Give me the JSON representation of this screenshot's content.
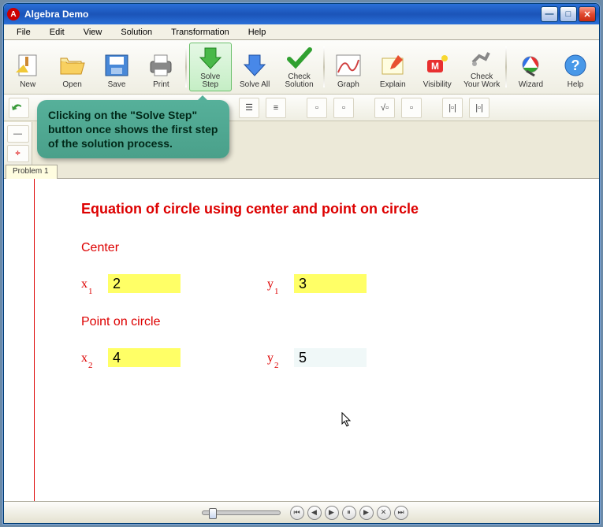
{
  "window": {
    "title": "Algebra Demo"
  },
  "menu": {
    "items": [
      "File",
      "Edit",
      "View",
      "Solution",
      "Transformation",
      "Help"
    ]
  },
  "toolbar": {
    "buttons": [
      {
        "label": "New",
        "name": "new-button"
      },
      {
        "label": "Open",
        "name": "open-button"
      },
      {
        "label": "Save",
        "name": "save-button"
      },
      {
        "label": "Print",
        "name": "print-button"
      },
      {
        "label": "Solve\nStep",
        "name": "solve-step-button",
        "highlight": true
      },
      {
        "label": "Solve All",
        "name": "solve-all-button"
      },
      {
        "label": "Check\nSolution",
        "name": "check-solution-button"
      },
      {
        "label": "Graph",
        "name": "graph-button"
      },
      {
        "label": "Explain",
        "name": "explain-button"
      },
      {
        "label": "Visibility",
        "name": "visibility-button"
      },
      {
        "label": "Check\nYour Work",
        "name": "check-work-button"
      },
      {
        "label": "Wizard",
        "name": "wizard-button"
      },
      {
        "label": "Help",
        "name": "help-button"
      }
    ]
  },
  "tooltip": {
    "text": "Clicking on the \"Solve Step\" button once shows the first step of the solution process."
  },
  "tab": {
    "label": "Problem 1"
  },
  "problem": {
    "title": "Equation of circle using center and point on circle",
    "section1": "Center",
    "x1_label": "x",
    "x1_sub": "1",
    "x1_val": "2",
    "y1_label": "y",
    "y1_sub": "1",
    "y1_val": "3",
    "section2": "Point on circle",
    "x2_label": "x",
    "x2_sub": "2",
    "x2_val": "4",
    "y2_label": "y",
    "y2_sub": "2",
    "y2_val": "5"
  },
  "colors": {
    "title_red": "#d00000",
    "highlight_yellow": "#ffff66",
    "tooltip_bg": "#4fa892"
  }
}
